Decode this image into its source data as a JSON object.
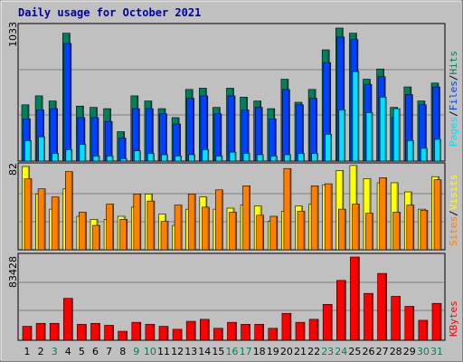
{
  "colors": {
    "hits": "#00805c",
    "files": "#0040ff",
    "pages": "#00e0ff",
    "visits": "#ffff00",
    "sites": "#ff8000",
    "kbytes": "#ff0000",
    "title": "#0000aa",
    "weekend": "#00805c"
  },
  "chart_data": [
    {
      "type": "bar",
      "title": "Daily usage for October 2021",
      "categories": [
        "1",
        "2",
        "3",
        "4",
        "5",
        "6",
        "7",
        "8",
        "9",
        "10",
        "11",
        "12",
        "13",
        "14",
        "15",
        "16",
        "17",
        "18",
        "19",
        "20",
        "21",
        "22",
        "23",
        "24",
        "25",
        "26",
        "27",
        "28",
        "29",
        "30",
        "31"
      ],
      "weekend_days": [
        "3",
        "9",
        "10",
        "16",
        "17",
        "23",
        "24",
        "30",
        "31"
      ],
      "ymax_label": "1033",
      "ylim": [
        0,
        1033
      ],
      "legend": [
        {
          "label": "Pages",
          "color": "#00e0ff"
        },
        {
          "sep": "/"
        },
        {
          "label": "Files",
          "color": "#0040ff"
        },
        {
          "sep": "/"
        },
        {
          "label": "Hits",
          "color": "#00805c"
        }
      ],
      "series": [
        {
          "name": "Hits",
          "values": [
            440,
            510,
            470,
            1000,
            430,
            420,
            410,
            230,
            510,
            470,
            410,
            340,
            560,
            570,
            420,
            570,
            500,
            470,
            410,
            640,
            460,
            560,
            870,
            1040,
            1000,
            640,
            720,
            420,
            580,
            470,
            610
          ]
        },
        {
          "name": "Files",
          "values": [
            330,
            400,
            410,
            920,
            340,
            340,
            310,
            180,
            410,
            410,
            370,
            290,
            490,
            510,
            370,
            510,
            400,
            420,
            330,
            560,
            440,
            490,
            770,
            970,
            950,
            600,
            660,
            340,
            520,
            440,
            580
          ]
        },
        {
          "name": "Pages",
          "values": [
            160,
            190,
            60,
            90,
            130,
            40,
            40,
            20,
            80,
            60,
            50,
            40,
            50,
            90,
            40,
            70,
            60,
            50,
            40,
            50,
            60,
            60,
            210,
            400,
            700,
            380,
            500,
            410,
            160,
            100,
            170
          ]
        }
      ]
    },
    {
      "type": "bar",
      "ymax_label": "82",
      "ylim": [
        0,
        82
      ],
      "legend": [
        {
          "label": "Sites",
          "color": "#ff8000"
        },
        {
          "sep": "/"
        },
        {
          "label": "Visits",
          "color": "#ffff00"
        }
      ],
      "series": [
        {
          "name": "Visits",
          "values": [
            82,
            55,
            40,
            60,
            33,
            30,
            30,
            33,
            42,
            55,
            35,
            24,
            40,
            52,
            40,
            41,
            44,
            43,
            28,
            38,
            43,
            45,
            64,
            78,
            83,
            70,
            66,
            66,
            57,
            40,
            72
          ]
        },
        {
          "name": "Sites",
          "values": [
            70,
            60,
            52,
            77,
            37,
            24,
            45,
            30,
            55,
            48,
            28,
            44,
            55,
            42,
            59,
            37,
            63,
            34,
            33,
            80,
            38,
            63,
            65,
            40,
            45,
            36,
            71,
            37,
            44,
            39,
            69
          ]
        }
      ]
    },
    {
      "type": "bar",
      "ymax_label": "83428",
      "ylim": [
        0,
        83428
      ],
      "legend": [
        {
          "label": "KBytes",
          "color": "#ff0000"
        }
      ],
      "series": [
        {
          "name": "KBytes",
          "values": [
            14000,
            17000,
            17000,
            42000,
            16000,
            17000,
            15000,
            9000,
            18000,
            16000,
            14000,
            11000,
            19000,
            21000,
            12000,
            18000,
            16000,
            16000,
            12000,
            27000,
            18000,
            21000,
            36000,
            60000,
            83428,
            47000,
            67000,
            44000,
            34000,
            20000,
            37000
          ]
        }
      ]
    }
  ]
}
